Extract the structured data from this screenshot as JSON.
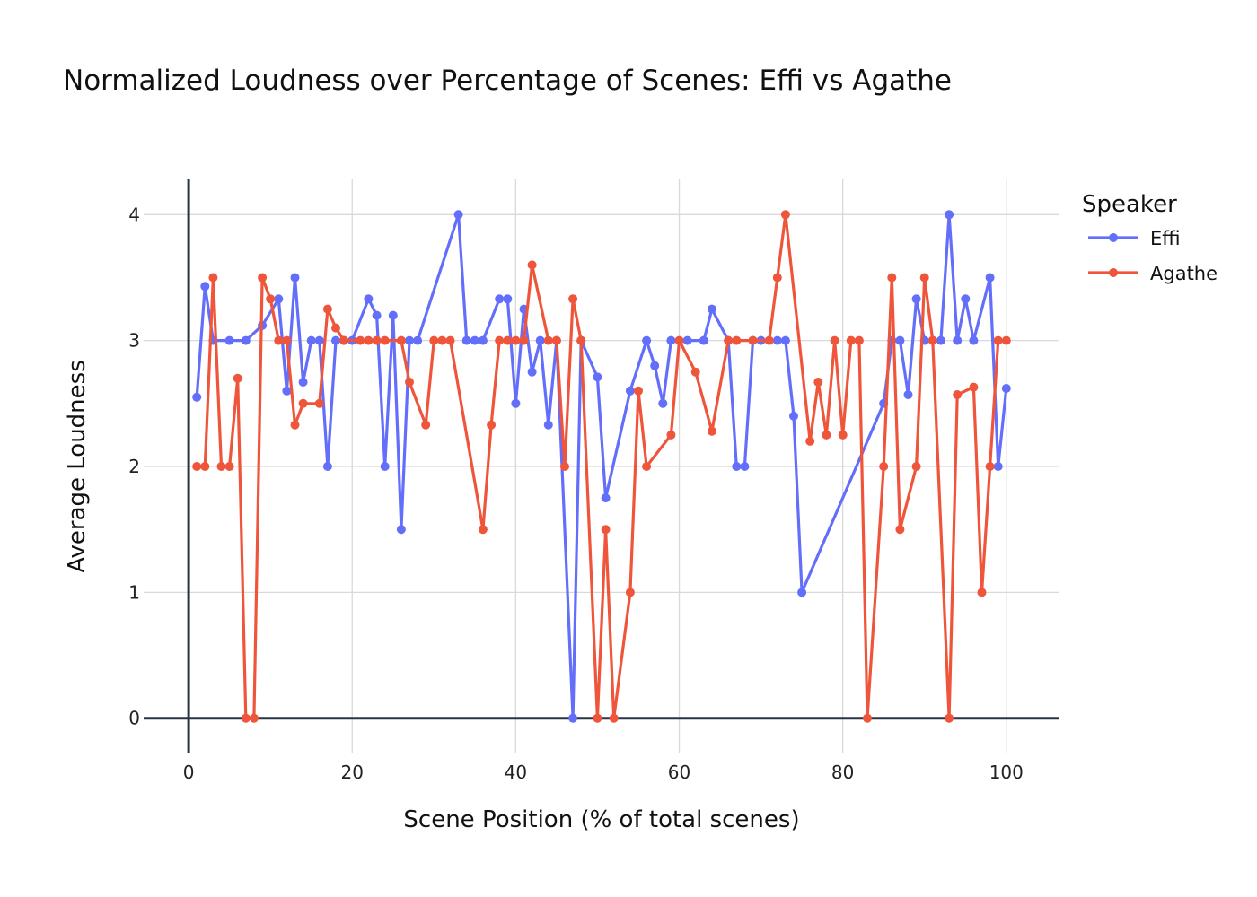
{
  "chart_data": {
    "type": "line",
    "title": "Normalized Loudness over Percentage of Scenes: Effi vs Agathe",
    "xlabel": "Scene Position (% of total scenes)",
    "ylabel": "Average Loudness",
    "xlim": [
      -5.5,
      106.5
    ],
    "ylim": [
      -0.28,
      4.28
    ],
    "xticks": [
      0,
      20,
      40,
      60,
      80,
      100
    ],
    "yticks": [
      0,
      1,
      2,
      3,
      4
    ],
    "grid": true,
    "legend": {
      "title": "Speaker",
      "position": "top-right"
    },
    "series": [
      {
        "name": "Effi",
        "color": "#636efa",
        "x": [
          1,
          2,
          3,
          5,
          7,
          9,
          11,
          12,
          13,
          14,
          15,
          16,
          17,
          18,
          19,
          20,
          22,
          23,
          24,
          25,
          26,
          27,
          28,
          33,
          34,
          35,
          36,
          38,
          39,
          40,
          41,
          42,
          43,
          44,
          45,
          47,
          48,
          50,
          51,
          54,
          56,
          57,
          58,
          59,
          61,
          63,
          64,
          66,
          67,
          68,
          69,
          70,
          72,
          73,
          74,
          75,
          85,
          86,
          87,
          88,
          89,
          90,
          91,
          92,
          93,
          94,
          95,
          96,
          98,
          99,
          100
        ],
        "y": [
          2.55,
          3.43,
          3,
          3,
          3,
          3.12,
          3.33,
          2.6,
          3.5,
          2.67,
          3,
          3,
          2,
          3,
          3,
          3,
          3.33,
          3.2,
          2,
          3.2,
          1.5,
          3,
          3,
          4,
          3,
          3,
          3,
          3.33,
          3.33,
          2.5,
          3.25,
          2.75,
          3,
          2.33,
          3,
          0,
          3,
          2.71,
          1.75,
          2.6,
          3,
          2.8,
          2.5,
          3,
          3,
          3,
          3.25,
          3,
          2,
          2,
          3,
          3,
          3,
          3,
          2.4,
          1,
          2.5,
          3,
          3,
          2.57,
          3.33,
          3,
          3,
          3,
          4,
          3,
          3.33,
          3,
          3.5,
          2,
          2.62
        ]
      },
      {
        "name": "Agathe",
        "color": "#ef553b",
        "x": [
          1,
          2,
          3,
          4,
          5,
          6,
          7,
          8,
          9,
          10,
          11,
          12,
          13,
          14,
          16,
          17,
          18,
          19,
          21,
          22,
          23,
          24,
          26,
          27,
          29,
          30,
          31,
          32,
          36,
          37,
          38,
          39,
          40,
          41,
          42,
          44,
          45,
          46,
          47,
          48,
          50,
          51,
          52,
          54,
          55,
          56,
          59,
          60,
          62,
          64,
          66,
          67,
          69,
          71,
          72,
          73,
          76,
          77,
          78,
          79,
          80,
          81,
          82,
          83,
          85,
          86,
          87,
          89,
          90,
          91,
          93,
          94,
          96,
          97,
          98,
          99,
          100
        ],
        "y": [
          2,
          2,
          3.5,
          2,
          2,
          2.7,
          0,
          0,
          3.5,
          3.33,
          3,
          3,
          2.33,
          2.5,
          2.5,
          3.25,
          3.1,
          3,
          3,
          3,
          3,
          3,
          3,
          2.67,
          2.33,
          3,
          3,
          3,
          1.5,
          2.33,
          3,
          3,
          3,
          3,
          3.6,
          3,
          3,
          2,
          3.33,
          3,
          0,
          1.5,
          0,
          1,
          2.6,
          2,
          2.25,
          3,
          2.75,
          2.28,
          3,
          3,
          3,
          3,
          3.5,
          4,
          2.2,
          2.67,
          2.25,
          3,
          2.25,
          3,
          3,
          0,
          2,
          3.5,
          1.5,
          2,
          3.5,
          3,
          0,
          2.57,
          2.63,
          1,
          2,
          3,
          3
        ]
      }
    ]
  }
}
